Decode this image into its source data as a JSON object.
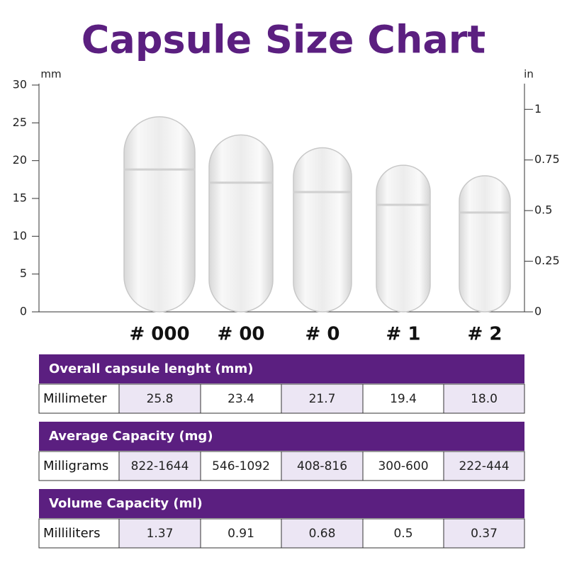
{
  "title": "Capsule Size Chart",
  "chart_data": {
    "type": "bar",
    "y_label": "mm",
    "y2_label": "in",
    "categories": [
      "# 000",
      "# 00",
      "# 0",
      "# 1",
      "# 2"
    ],
    "values": [
      25.8,
      23.4,
      21.7,
      19.4,
      18.0
    ],
    "value_labels": [
      "25.8",
      "23.4",
      "21.7",
      "19.4",
      "18.0"
    ],
    "color": "#eeeeee",
    "ylim": [
      0,
      30
    ],
    "yticks": [
      0,
      5,
      10,
      15,
      20,
      25,
      30
    ],
    "y2lim": [
      0,
      1.12
    ],
    "y2ticks": [
      0,
      0.25,
      0.5,
      0.75,
      1
    ]
  },
  "tables": [
    {
      "title": "Overall capsule lenght (mm)",
      "row_label": "Millimeter"
    },
    {
      "title": "Average Capacity (mg)",
      "row_label": "Milligrams",
      "cells": [
        "822-1644",
        "546-1092",
        "408-816",
        "300-600",
        "222-444"
      ]
    },
    {
      "title": "Volume Capacity (ml)",
      "row_label": "Milliliters",
      "cells": [
        "1.37",
        "0.91",
        "0.68",
        "0.5",
        "0.37"
      ]
    }
  ]
}
